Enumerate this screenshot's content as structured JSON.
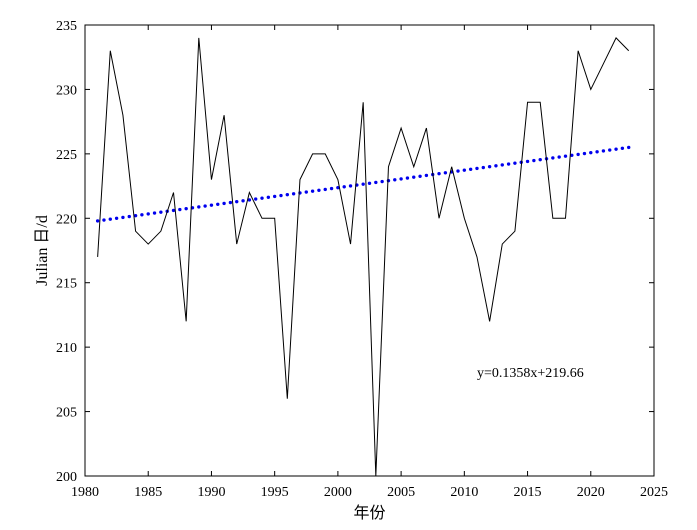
{
  "chart_data": {
    "type": "line",
    "title": "",
    "xlabel": "年份",
    "ylabel": "Julian 日/d",
    "xlim": [
      1980,
      2025
    ],
    "ylim": [
      200,
      235
    ],
    "xticks": [
      1980,
      1985,
      1990,
      1995,
      2000,
      2005,
      2010,
      2015,
      2020,
      2025
    ],
    "yticks": [
      200,
      205,
      210,
      215,
      220,
      225,
      230,
      235
    ],
    "grid": false,
    "series": [
      {
        "type": "line",
        "color": "#000000",
        "x": [
          1981,
          1982,
          1983,
          1984,
          1985,
          1986,
          1987,
          1988,
          1989,
          1990,
          1991,
          1992,
          1993,
          1994,
          1995,
          1996,
          1997,
          1998,
          1999,
          2000,
          2001,
          2002,
          2003,
          2004,
          2005,
          2006,
          2007,
          2008,
          2009,
          2010,
          2011,
          2012,
          2013,
          2014,
          2015,
          2016,
          2017,
          2018,
          2019,
          2020,
          2021,
          2022,
          2023
        ],
        "y": [
          217,
          233,
          228,
          219,
          218,
          219,
          222,
          212,
          234,
          223,
          228,
          218,
          222,
          220,
          220,
          206,
          223,
          225,
          225,
          223,
          218,
          229,
          200,
          224,
          227,
          224,
          227,
          220,
          224,
          220,
          217,
          212,
          218,
          219,
          229,
          229,
          220,
          220,
          233,
          230,
          232,
          234,
          233
        ]
      },
      {
        "type": "trend",
        "color": "#0000ee",
        "style": "dotted",
        "slope": 0.1358,
        "intercept": 219.66,
        "x_start": 1981,
        "x_end": 2023
      }
    ],
    "annotations": [
      {
        "text": "y=0.1358x+219.66",
        "x": 2011,
        "y": 207.7
      }
    ]
  }
}
